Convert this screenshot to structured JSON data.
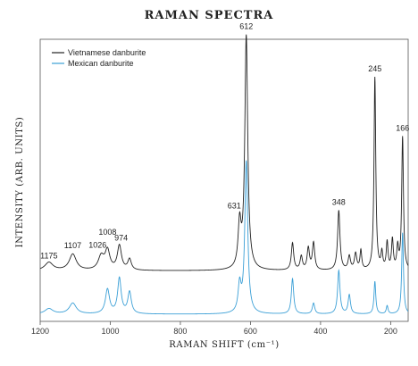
{
  "chart_data": {
    "type": "line",
    "title": "RAMAN SPECTRA",
    "xlabel": "RAMAN SHIFT (cm⁻¹)",
    "ylabel": "INTENSITY (ARB. UNITS)",
    "xlim": [
      1200,
      150
    ],
    "x_reversed": true,
    "x_ticks": [
      "1200",
      "1000",
      "800",
      "600",
      "400",
      "200"
    ],
    "legend_position": "top-left",
    "series": [
      {
        "name": "Vietnamese danburite",
        "color": "#222222",
        "baseline": 0.16,
        "peaks": [
          {
            "x": 1175,
            "h": 0.03,
            "w": 14
          },
          {
            "x": 1107,
            "h": 0.06,
            "w": 12
          },
          {
            "x": 1026,
            "h": 0.05,
            "w": 10
          },
          {
            "x": 1008,
            "h": 0.07,
            "w": 8
          },
          {
            "x": 974,
            "h": 0.09,
            "w": 7
          },
          {
            "x": 945,
            "h": 0.04,
            "w": 6
          },
          {
            "x": 631,
            "h": 0.16,
            "w": 5
          },
          {
            "x": 612,
            "h": 0.86,
            "w": 5
          },
          {
            "x": 480,
            "h": 0.1,
            "w": 4
          },
          {
            "x": 455,
            "h": 0.05,
            "w": 4
          },
          {
            "x": 435,
            "h": 0.08,
            "w": 4
          },
          {
            "x": 420,
            "h": 0.1,
            "w": 4
          },
          {
            "x": 348,
            "h": 0.22,
            "w": 4
          },
          {
            "x": 318,
            "h": 0.05,
            "w": 4
          },
          {
            "x": 300,
            "h": 0.06,
            "w": 4
          },
          {
            "x": 285,
            "h": 0.07,
            "w": 3
          },
          {
            "x": 245,
            "h": 0.71,
            "w": 3
          },
          {
            "x": 225,
            "h": 0.06,
            "w": 3
          },
          {
            "x": 210,
            "h": 0.1,
            "w": 3
          },
          {
            "x": 195,
            "h": 0.11,
            "w": 3
          },
          {
            "x": 180,
            "h": 0.08,
            "w": 3
          },
          {
            "x": 166,
            "h": 0.49,
            "w": 3
          }
        ]
      },
      {
        "name": "Mexican danburite",
        "color": "#3a9fd6",
        "baseline": 0.0,
        "peaks": [
          {
            "x": 1175,
            "h": 0.02,
            "w": 14
          },
          {
            "x": 1107,
            "h": 0.04,
            "w": 12
          },
          {
            "x": 1008,
            "h": 0.09,
            "w": 7
          },
          {
            "x": 974,
            "h": 0.13,
            "w": 6
          },
          {
            "x": 945,
            "h": 0.08,
            "w": 6
          },
          {
            "x": 631,
            "h": 0.1,
            "w": 5
          },
          {
            "x": 612,
            "h": 0.56,
            "w": 5
          },
          {
            "x": 480,
            "h": 0.13,
            "w": 4
          },
          {
            "x": 420,
            "h": 0.04,
            "w": 4
          },
          {
            "x": 348,
            "h": 0.16,
            "w": 4
          },
          {
            "x": 318,
            "h": 0.07,
            "w": 4
          },
          {
            "x": 245,
            "h": 0.12,
            "w": 3
          },
          {
            "x": 210,
            "h": 0.03,
            "w": 3
          },
          {
            "x": 166,
            "h": 0.3,
            "w": 3
          }
        ]
      }
    ],
    "annotations": [
      "1175",
      "1107",
      "1026",
      "1008",
      "974",
      "631",
      "612",
      "348",
      "245",
      "166"
    ]
  }
}
